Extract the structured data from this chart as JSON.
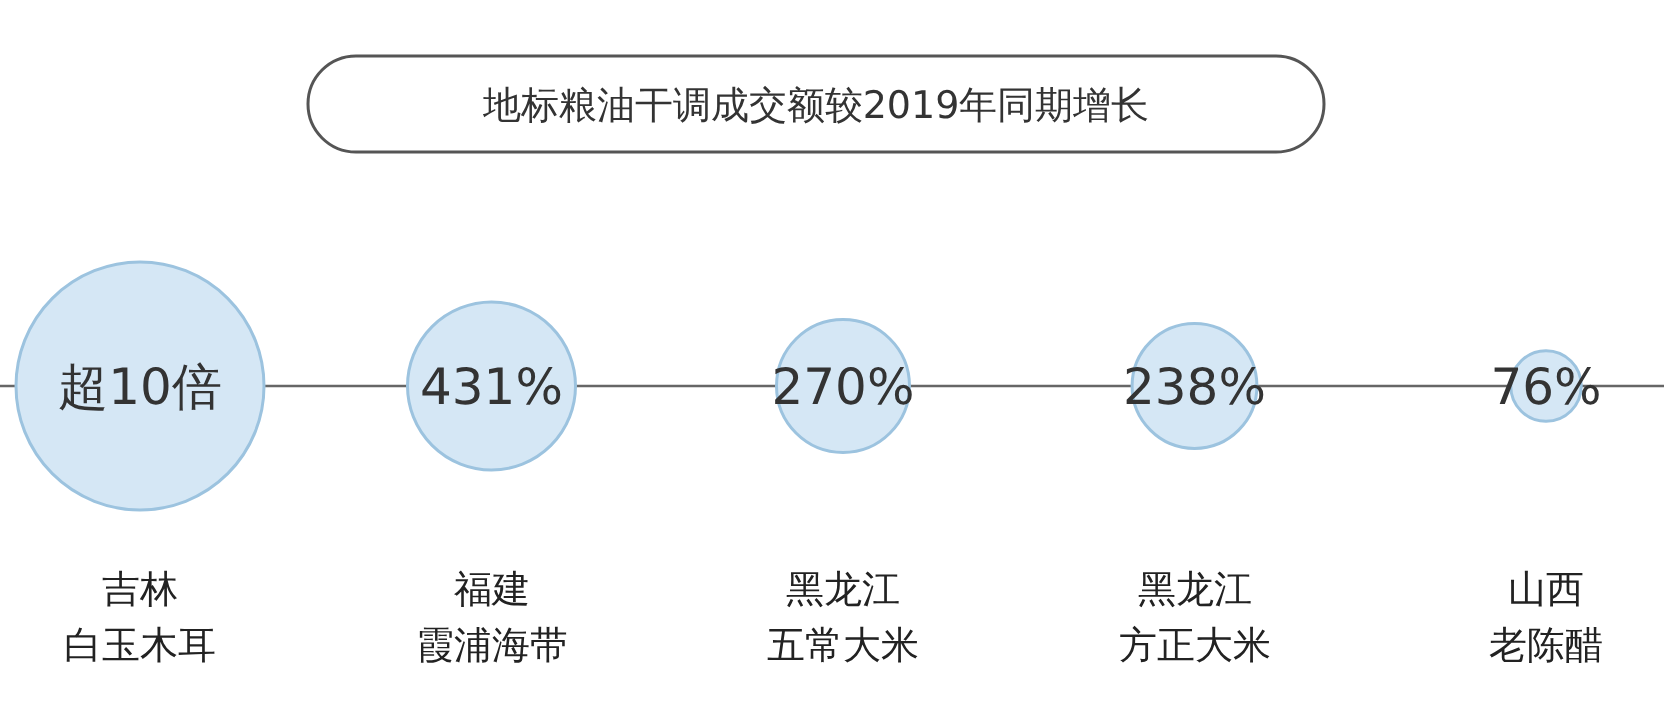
{
  "chart_data": {
    "type": "other",
    "title": "地标粮油干调成交额较2019年同期增长",
    "categories": [
      "吉林白玉木耳",
      "福建霞浦海带",
      "黑龙江五常大米",
      "黑龙江方正大米",
      "山西老陈醋"
    ],
    "values": [
      null,
      431,
      270,
      238,
      76
    ],
    "value_labels": [
      "超10倍",
      "431%",
      "270%",
      "238%",
      "76%"
    ],
    "color": "#d5e7f5"
  }
}
